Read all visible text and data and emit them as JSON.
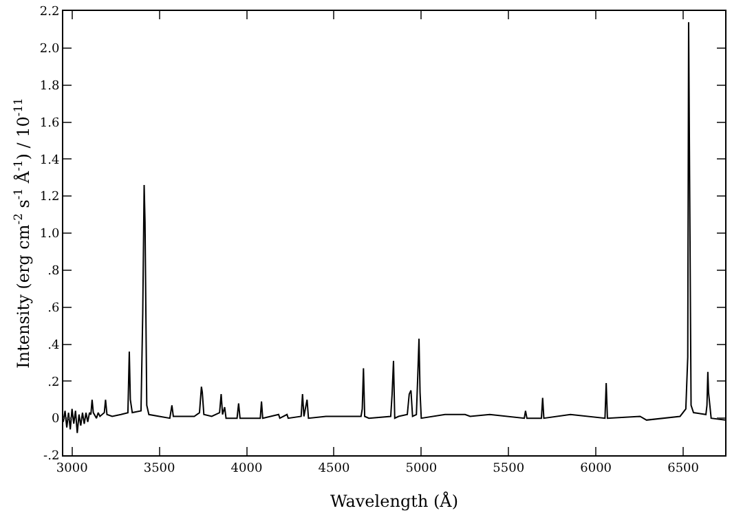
{
  "chart_data": {
    "type": "line",
    "xlabel": "Wavelength (Å)",
    "ylabel": "Intensity (erg cm$^{-2}$ s$^{-1}$ Å$^{-1}$) / 10$^{-11}$",
    "xlim": [
      2950,
      6740
    ],
    "xticks": [
      3000,
      3500,
      4000,
      4500,
      5000,
      5500,
      6000,
      6500
    ],
    "ylim": [
      -0.2,
      2.2
    ],
    "yticks": [
      {
        "value": -0.2,
        "label": "-.2"
      },
      0,
      {
        "value": 0.2,
        "label": ".2"
      },
      {
        "value": 0.4,
        "label": ".4"
      },
      {
        "value": 0.6,
        "label": ".6"
      },
      {
        "value": 0.8,
        "label": ".8"
      },
      {
        "value": 1.0,
        "label": "1.0"
      },
      {
        "value": 1.2,
        "label": "1.2"
      },
      {
        "value": 1.4,
        "label": "1.4"
      },
      {
        "value": 1.6,
        "label": "1.6"
      },
      {
        "value": 1.8,
        "label": "1.8"
      },
      {
        "value": 2.0,
        "label": "2.0"
      },
      {
        "value": 2.2,
        "label": "2.2"
      }
    ],
    "legend": false,
    "marker": "none",
    "line_style": "solid",
    "series": [
      {
        "color": "#000000",
        "x": [
          2950,
          2960,
          2970,
          2980,
          2990,
          3000,
          3010,
          3020,
          3030,
          3040,
          3050,
          3060,
          3070,
          3080,
          3090,
          3100,
          3108,
          3115,
          3122,
          3140,
          3150,
          3160,
          3185,
          3192,
          3200,
          3230,
          3280,
          3320,
          3328,
          3334,
          3345,
          3395,
          3405,
          3413,
          3418,
          3428,
          3440,
          3500,
          3560,
          3572,
          3580,
          3700,
          3730,
          3741,
          3746,
          3755,
          3800,
          3845,
          3854,
          3862,
          3874,
          3882,
          3945,
          3954,
          3962,
          4078,
          4085,
          4092,
          4183,
          4190,
          4231,
          4238,
          4312,
          4320,
          4328,
          4346,
          4354,
          4454,
          4523,
          4655,
          4662,
          4669,
          4676,
          4700,
          4825,
          4833,
          4841,
          4848,
          4870,
          4920,
          4931,
          4941,
          4950,
          4972,
          4980,
          4987,
          4993,
          5000,
          5136,
          5251,
          5280,
          5392,
          5590,
          5597,
          5605,
          5688,
          5695,
          5702,
          5854,
          6052,
          6059,
          6066,
          6253,
          6290,
          6482,
          6515,
          6526,
          6531,
          6535,
          6545,
          6559,
          6630,
          6636,
          6641,
          6645,
          6660,
          6740
        ],
        "values": [
          -0.02,
          0.04,
          -0.05,
          0.03,
          -0.06,
          0.05,
          -0.03,
          0.04,
          -0.08,
          0.02,
          -0.04,
          0.03,
          -0.03,
          0.03,
          -0.02,
          0.03,
          0.02,
          0.1,
          0.03,
          0.0,
          0.03,
          0.01,
          0.03,
          0.1,
          0.02,
          0.01,
          0.02,
          0.03,
          0.36,
          0.1,
          0.03,
          0.04,
          0.57,
          1.26,
          1.06,
          0.07,
          0.02,
          0.01,
          0.0,
          0.07,
          0.01,
          0.01,
          0.03,
          0.17,
          0.14,
          0.02,
          0.01,
          0.03,
          0.13,
          0.02,
          0.06,
          0.0,
          0.0,
          0.08,
          0.0,
          0.0,
          0.09,
          0.0,
          0.02,
          0.0,
          0.02,
          0.0,
          0.01,
          0.13,
          0.01,
          0.1,
          0.0,
          0.01,
          0.01,
          0.01,
          0.05,
          0.27,
          0.01,
          0.0,
          0.01,
          0.13,
          0.31,
          0.0,
          0.01,
          0.02,
          0.13,
          0.15,
          0.01,
          0.02,
          0.23,
          0.43,
          0.14,
          0.0,
          0.02,
          0.02,
          0.01,
          0.02,
          0.0,
          0.04,
          0.0,
          0.0,
          0.11,
          0.0,
          0.02,
          0.0,
          0.19,
          0.0,
          0.01,
          -0.01,
          0.01,
          0.05,
          0.33,
          2.14,
          1.55,
          0.07,
          0.03,
          0.02,
          0.07,
          0.25,
          0.14,
          0.0,
          -0.01
        ]
      }
    ]
  }
}
